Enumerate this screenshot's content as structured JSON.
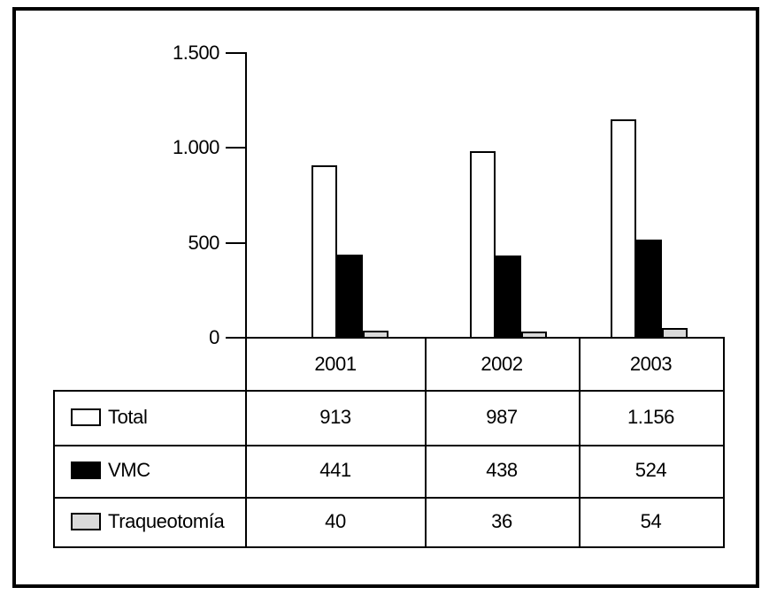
{
  "figure": {
    "description": "bar chart with attached data table",
    "background": "#ffffff",
    "line_color": "#000000"
  },
  "chart_data": {
    "type": "bar",
    "title": "",
    "categories": [
      "2001",
      "2002",
      "2003"
    ],
    "series": [
      {
        "id": "total",
        "name": "Total",
        "fill": "#ffffff",
        "outline": "#000000",
        "values": [
          913,
          987,
          1156
        ],
        "display_values": [
          "913",
          "987",
          "1.156"
        ]
      },
      {
        "id": "vmc",
        "name": "VMC",
        "fill": "#000000",
        "outline": "#000000",
        "values": [
          441,
          438,
          524
        ],
        "display_values": [
          "441",
          "438",
          "524"
        ]
      },
      {
        "id": "traqueotomia",
        "name": "Traqueotomía",
        "fill": "#d9d9d9",
        "outline": "#000000",
        "values": [
          40,
          36,
          54
        ],
        "display_values": [
          "40",
          "36",
          "54"
        ]
      }
    ],
    "ylim": [
      0,
      1500
    ],
    "yticks": [
      {
        "value": 1500,
        "label": "1.500"
      },
      {
        "value": 1000,
        "label": "1.000"
      },
      {
        "value": 500,
        "label": "500"
      },
      {
        "value": 0,
        "label": "0"
      }
    ],
    "xlabel": "",
    "ylabel": "",
    "grid": false,
    "legend_position": "left column of attached data table"
  }
}
